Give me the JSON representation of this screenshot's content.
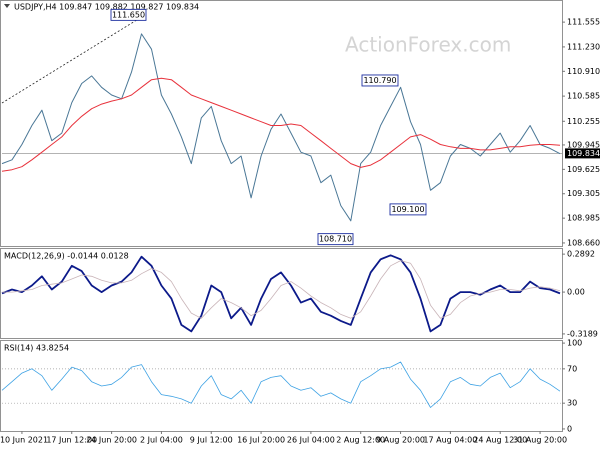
{
  "chart_data": [
    {
      "type": "line",
      "title": "USDJPY,H4  109.847 109.882 109.827 109.834",
      "watermark": "ActionForex.com",
      "series": [
        {
          "color": "#4a7796",
          "values": [
            109.7,
            109.75,
            109.95,
            110.2,
            110.4,
            110.0,
            110.1,
            110.5,
            110.75,
            110.85,
            110.7,
            110.6,
            110.55,
            110.9,
            111.4,
            111.2,
            110.6,
            110.35,
            110.05,
            109.7,
            110.3,
            110.45,
            110.0,
            109.7,
            109.8,
            109.25,
            109.8,
            110.15,
            110.35,
            110.1,
            109.85,
            109.8,
            109.45,
            109.55,
            109.15,
            108.95,
            109.7,
            109.85,
            110.2,
            110.45,
            110.7,
            110.25,
            109.95,
            109.35,
            109.45,
            109.8,
            109.95,
            109.9,
            109.8,
            109.95,
            110.1,
            109.85,
            110.0,
            110.2,
            109.95,
            109.9,
            109.83
          ]
        },
        {
          "color": "#e8323c",
          "values": [
            109.6,
            109.62,
            109.66,
            109.75,
            109.85,
            109.95,
            110.05,
            110.2,
            110.32,
            110.42,
            110.48,
            110.52,
            110.55,
            110.6,
            110.7,
            110.8,
            110.82,
            110.8,
            110.7,
            110.6,
            110.55,
            110.5,
            110.45,
            110.4,
            110.35,
            110.3,
            110.25,
            110.2,
            110.2,
            110.22,
            110.2,
            110.1,
            110.0,
            109.9,
            109.8,
            109.7,
            109.65,
            109.68,
            109.75,
            109.85,
            109.95,
            110.05,
            110.08,
            110.02,
            109.95,
            109.92,
            109.9,
            109.9,
            109.88,
            109.88,
            109.9,
            109.92,
            109.92,
            109.94,
            109.95,
            109.95,
            109.94
          ]
        }
      ],
      "annotations": [
        {
          "value": 111.65,
          "label": "111.650"
        },
        {
          "value": 110.79,
          "label": "110.790"
        },
        {
          "value": 109.1,
          "label": "109.100"
        },
        {
          "value": 108.71,
          "label": "108.710"
        }
      ],
      "last_price": {
        "value": 109.834,
        "label": "109.834"
      },
      "ylim": [
        108.62,
        111.845
      ],
      "yticks": [
        111.555,
        {
          "value": 111.23,
          "label": "111.230"
        },
        {
          "value": 110.91,
          "label": "110.910"
        },
        110.585,
        110.255,
        109.945,
        109.625,
        109.305,
        108.985,
        {
          "value": 108.66,
          "label": "108.660"
        }
      ]
    },
    {
      "type": "line",
      "title": "MACD(12,26,9) -0.0144 0.0128",
      "series": [
        {
          "color": "#0c1a8a",
          "values": [
            -0.01,
            0.02,
            0.0,
            0.05,
            0.12,
            0.02,
            0.08,
            0.2,
            0.16,
            0.05,
            0.0,
            0.05,
            0.08,
            0.15,
            0.27,
            0.2,
            0.05,
            -0.05,
            -0.25,
            -0.3,
            -0.18,
            0.05,
            0.0,
            -0.2,
            -0.12,
            -0.25,
            -0.05,
            0.1,
            0.15,
            0.05,
            -0.08,
            -0.05,
            -0.15,
            -0.18,
            -0.22,
            -0.25,
            -0.05,
            0.15,
            0.25,
            0.28,
            0.25,
            0.15,
            -0.05,
            -0.3,
            -0.25,
            -0.05,
            0.0,
            0.0,
            -0.02,
            0.02,
            0.05,
            0.0,
            0.0,
            0.08,
            0.03,
            0.02,
            -0.01
          ]
        },
        {
          "color": "#c9b4b8",
          "values": [
            0.0,
            0.0,
            0.01,
            0.02,
            0.05,
            0.06,
            0.07,
            0.1,
            0.13,
            0.12,
            0.09,
            0.07,
            0.07,
            0.09,
            0.14,
            0.18,
            0.15,
            0.08,
            -0.05,
            -0.16,
            -0.2,
            -0.12,
            -0.05,
            -0.08,
            -0.12,
            -0.18,
            -0.14,
            -0.05,
            0.05,
            0.08,
            0.03,
            -0.03,
            -0.08,
            -0.12,
            -0.17,
            -0.2,
            -0.15,
            -0.03,
            0.1,
            0.2,
            0.24,
            0.22,
            0.1,
            -0.1,
            -0.2,
            -0.17,
            -0.08,
            -0.03,
            -0.01,
            0.0,
            0.02,
            0.02,
            0.01,
            0.03,
            0.04,
            0.03,
            0.01
          ]
        }
      ],
      "ylim": [
        -0.35,
        0.336
      ],
      "yticks": [
        0.2892,
        {
          "value": 0,
          "label": "0.00"
        },
        -0.3189
      ]
    },
    {
      "type": "line",
      "title": "RSI(14) 43.8254",
      "series": [
        {
          "color": "#3ea2e4",
          "values": [
            45,
            55,
            65,
            70,
            62,
            45,
            58,
            72,
            68,
            55,
            50,
            52,
            60,
            72,
            75,
            55,
            40,
            38,
            35,
            30,
            50,
            62,
            40,
            35,
            45,
            30,
            55,
            60,
            62,
            50,
            45,
            48,
            38,
            42,
            35,
            30,
            55,
            62,
            70,
            72,
            78,
            58,
            45,
            25,
            35,
            55,
            60,
            52,
            50,
            60,
            65,
            48,
            55,
            70,
            58,
            52,
            44
          ]
        }
      ],
      "levels": [
        70,
        30
      ],
      "ylim": [
        -2.4,
        103.6
      ],
      "yticks": [
        100,
        70,
        30,
        0
      ],
      "categories": [
        null,
        null,
        "10 Jun 2021",
        null,
        null,
        null,
        null,
        "17 Jun 12:00",
        null,
        null,
        null,
        "24 Jun 20:00",
        null,
        null,
        null,
        null,
        "2 Jul 04:00",
        null,
        null,
        null,
        null,
        "9 Jul 12:00",
        null,
        null,
        null,
        null,
        "16 Jul 20:00",
        null,
        null,
        null,
        null,
        "26 Jul 04:00",
        null,
        null,
        null,
        null,
        "2 Aug 12:00",
        null,
        null,
        null,
        "9 Aug 20:00",
        null,
        null,
        null,
        null,
        "17 Aug 04:00",
        null,
        null,
        null,
        null,
        "24 Aug 12:00",
        null,
        null,
        null,
        "31 Aug 20:00",
        null,
        null
      ]
    }
  ]
}
